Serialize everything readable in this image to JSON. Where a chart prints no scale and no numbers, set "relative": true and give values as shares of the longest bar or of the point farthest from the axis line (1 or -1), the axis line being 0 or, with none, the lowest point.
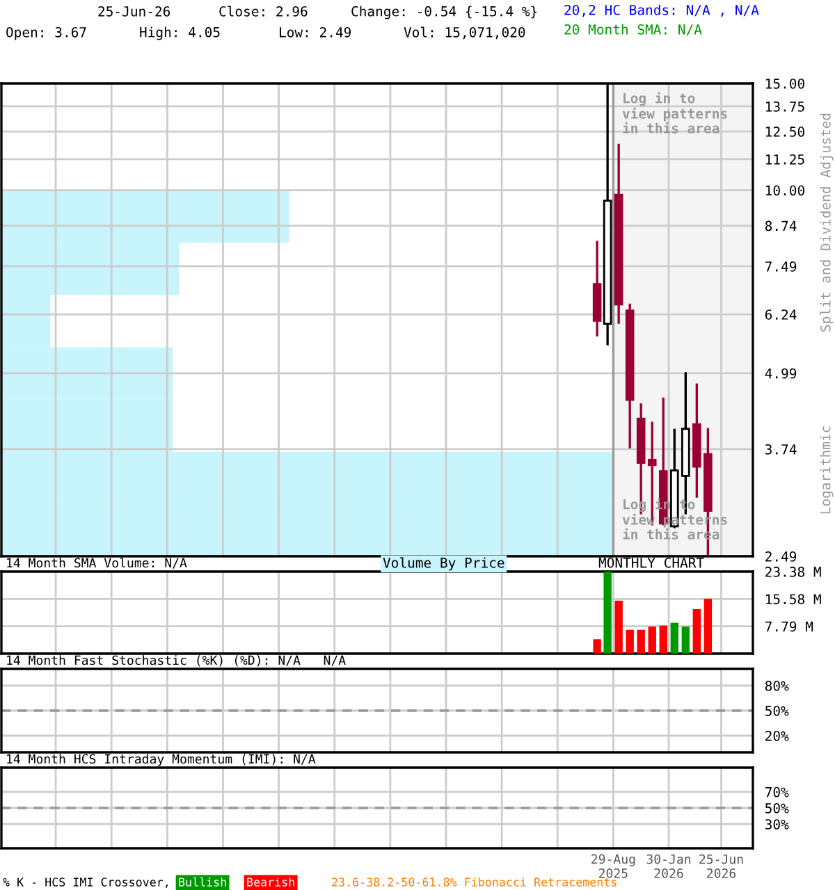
{
  "chart_data": [
    {
      "type": "candlestick",
      "ylabel": "Split and Dividend Adjusted",
      "log": true,
      "grid": true,
      "tick_labels": "y",
      "x": [
        "2025-07-15",
        "2025-08-13",
        "2025-09-13",
        "2025-10-14",
        "2025-11-14",
        "2025-12-15",
        "2026-01-15",
        "2026-02-15",
        "2026-03-18",
        "2026-04-18",
        "2026-05-19"
      ],
      "ohlc": [
        [
          7.0,
          8.25,
          5.74,
          6.09
        ],
        [
          6.02,
          15.0,
          5.55,
          9.61
        ],
        [
          9.83,
          11.93,
          6.02,
          6.48
        ],
        [
          6.33,
          6.5,
          3.75,
          4.51
        ],
        [
          4.2,
          4.45,
          2.92,
          3.55
        ],
        [
          3.59,
          4.15,
          2.8,
          3.52
        ],
        [
          3.44,
          4.55,
          2.8,
          2.82
        ],
        [
          2.79,
          4.04,
          2.77,
          3.45
        ],
        [
          3.38,
          5.01,
          2.92,
          4.04
        ],
        [
          4.11,
          4.8,
          3.11,
          3.5
        ],
        [
          3.67,
          4.05,
          2.49,
          2.96
        ]
      ],
      "colors": [
        "#990033",
        "#ffffff",
        "#990033",
        "#990033",
        "#990033",
        "#990033",
        "#990033",
        "#ffffff",
        "#ffffff",
        "#990033",
        "#990033"
      ],
      "xlim": [
        "2021-01-01",
        "2026-09-21"
      ],
      "xticks": [
        {
          "value": "2021-06-01",
          "label": null
        },
        {
          "value": "2021-11-03",
          "label": null
        },
        {
          "value": "2022-04-07",
          "label": null
        },
        {
          "value": "2022-09-09",
          "label": null
        },
        {
          "value": "2023-02-11",
          "label": null
        },
        {
          "value": "2023-07-16",
          "label": null
        },
        {
          "value": "2023-12-18",
          "label": null
        },
        {
          "value": "2024-05-21",
          "label": null
        },
        {
          "value": "2024-10-23",
          "label": null
        },
        {
          "value": "2025-03-27",
          "label": null
        },
        {
          "value": "2025-08-29",
          "label": null
        },
        {
          "value": "2026-01-30",
          "label": null
        },
        {
          "value": "2026-06-25",
          "label": null
        }
      ],
      "ylim": [
        2.49,
        15.0
      ],
      "yticks": [
        2.49,
        3.74,
        4.99,
        6.24,
        7.49,
        8.74,
        {
          "value": 10.0,
          "label": "10.00"
        },
        {
          "value": 11.25,
          "label": "11.25"
        },
        {
          "value": 12.5,
          "label": "12.50"
        },
        13.75,
        {
          "value": 15.0,
          "label": "15.00"
        }
      ],
      "bands": [
        {
          "axis": "x",
          "from": "2025-08-29",
          "to": "2026-09-21",
          "color": "#f4f4f4"
        }
      ],
      "ref_lines": [
        {
          "axis": "x",
          "value": "2025-08-29",
          "color": "#999999"
        }
      ],
      "annotations": [
        "25-Jun-26",
        "Close: 2.96",
        "Change: -0.54 {-15.4 %}",
        "Open: 3.67",
        "High: 4.05",
        "Low: 2.49",
        "Vol: 15,071,020",
        "20,2 HC Bands: N/A , N/A",
        "20 Month SMA: N/A",
        "Log in to\nview patterns\nin this area",
        "Log in to\nview patterns\nin this area",
        "Logarithmic",
        "% K - HCS IMI Crossover,",
        "Bullish",
        "Bearish",
        "23.6-38.2-50-61.8% Fibonacci Retracements"
      ]
    },
    {
      "type": "bar",
      "orientation": "horizontal",
      "relative": true,
      "title": "Volume By Price",
      "color": "#c8f4fc",
      "categories": [
        null,
        null,
        null,
        null,
        null,
        null,
        null
      ],
      "values": [
        0.47,
        0.29,
        0.08,
        0.28,
        0.28,
        1,
        1
      ]
    },
    {
      "type": "bar",
      "title": "14 Month SMA Volume: N/A",
      "subtitle": "MONTHLY CHART",
      "grid": true,
      "tick_labels": "y",
      "x": [
        "2025-07-15",
        "2025-08-13",
        "2025-09-13",
        "2025-10-14",
        "2025-11-14",
        "2025-12-15",
        "2026-01-15",
        "2026-02-15",
        "2026-03-18",
        "2026-04-18",
        "2026-05-19"
      ],
      "values": [
        4.1,
        23.4,
        15.1,
        6.8,
        6.8,
        7.7,
        8.0,
        8.8,
        7.7,
        12.7,
        15.6
      ],
      "colors": [
        "#ff0000",
        "#009900",
        "#ff0000",
        "#ff0000",
        "#ff0000",
        "#ff0000",
        "#ff0000",
        "#009900",
        "#009900",
        "#ff0000",
        "#ff0000"
      ],
      "xlim": [
        "2021-01-01",
        "2026-09-21"
      ],
      "xticks": [
        {
          "value": "2021-06-01",
          "label": null
        },
        {
          "value": "2021-11-03",
          "label": null
        },
        {
          "value": "2022-04-07",
          "label": null
        },
        {
          "value": "2022-09-09",
          "label": null
        },
        {
          "value": "2023-02-11",
          "label": null
        },
        {
          "value": "2023-07-16",
          "label": null
        },
        {
          "value": "2023-12-18",
          "label": null
        },
        {
          "value": "2024-05-21",
          "label": null
        },
        {
          "value": "2024-10-23",
          "label": null
        },
        {
          "value": "2025-03-27",
          "label": null
        },
        {
          "value": "2025-08-29",
          "label": null
        },
        {
          "value": "2026-01-30",
          "label": null
        },
        {
          "value": "2026-06-25",
          "label": null
        }
      ],
      "ylim": [
        0,
        23.4
      ],
      "yticks": [
        {
          "value": 7.79,
          "label": "7.79 M"
        },
        {
          "value": 15.58,
          "label": "15.58 M"
        },
        {
          "value": 23.38,
          "label": "23.38 M"
        }
      ]
    },
    {
      "type": "line",
      "title": "14 Month Fast Stochastic (%K) (%D): N/A   N/A",
      "grid": true,
      "tick_labels": "y",
      "xlim": [
        "2021-01-01",
        "2026-09-21"
      ],
      "xticks": [
        {
          "value": "2021-06-01",
          "label": null
        },
        {
          "value": "2021-11-03",
          "label": null
        },
        {
          "value": "2022-04-07",
          "label": null
        },
        {
          "value": "2022-09-09",
          "label": null
        },
        {
          "value": "2023-02-11",
          "label": null
        },
        {
          "value": "2023-07-16",
          "label": null
        },
        {
          "value": "2023-12-18",
          "label": null
        },
        {
          "value": "2024-05-21",
          "label": null
        },
        {
          "value": "2024-10-23",
          "label": null
        },
        {
          "value": "2025-03-27",
          "label": null
        },
        {
          "value": "2025-08-29",
          "label": null
        },
        {
          "value": "2026-01-30",
          "label": null
        },
        {
          "value": "2026-06-25",
          "label": null
        }
      ],
      "ylim": [
        0,
        100
      ],
      "yticks": [
        {
          "value": 20,
          "label": "20%"
        },
        {
          "value": 80,
          "label": "80%"
        }
      ],
      "ref_lines": [
        {
          "axis": "y",
          "value": 50,
          "label": "50%",
          "line_style": "dashed",
          "color": "#999999"
        }
      ]
    },
    {
      "type": "line",
      "title": "14 Month HCS Intraday Momentum (IMI): N/A",
      "grid": true,
      "xlim": [
        "2021-01-01",
        "2026-09-21"
      ],
      "xticks": [
        {
          "value": "2021-06-01",
          "label": null
        },
        {
          "value": "2021-11-03",
          "label": null
        },
        {
          "value": "2022-04-07",
          "label": null
        },
        {
          "value": "2022-09-09",
          "label": null
        },
        {
          "value": "2023-02-11",
          "label": null
        },
        {
          "value": "2023-07-16",
          "label": null
        },
        {
          "value": "2023-12-18",
          "label": null
        },
        {
          "value": "2024-05-21",
          "label": null
        },
        {
          "value": "2024-10-23",
          "label": null
        },
        {
          "value": "2025-03-27",
          "label": null
        },
        {
          "value": "2025-08-29",
          "label": "29-Aug\n2025"
        },
        {
          "value": "2026-01-30",
          "label": "30-Jan\n2026"
        },
        {
          "value": "2026-06-25",
          "label": "25-Jun\n2026"
        }
      ],
      "ylim": [
        0,
        100
      ],
      "yticks": [
        {
          "value": 30,
          "label": "30%"
        },
        {
          "value": 70,
          "label": "70%"
        }
      ],
      "ref_lines": [
        {
          "axis": "y",
          "value": 50,
          "label": "50%",
          "line_style": "dashed",
          "color": "#999999"
        }
      ]
    }
  ]
}
